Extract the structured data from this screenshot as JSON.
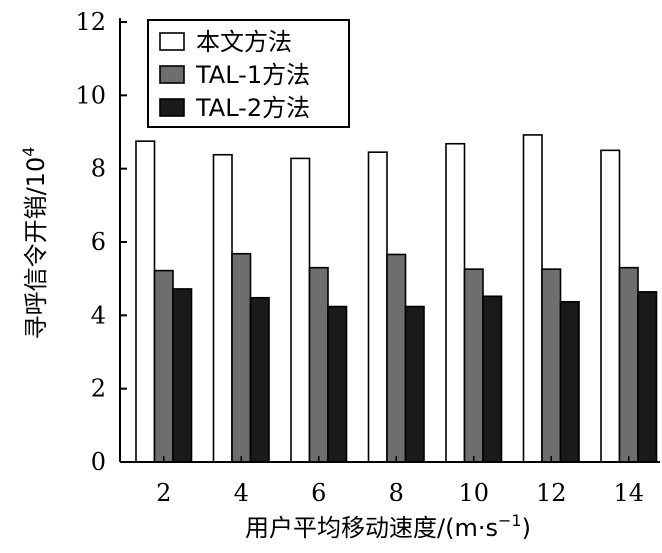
{
  "chart_data": {
    "type": "bar",
    "ylabel": "寻呼信令开销/10",
    "ylabel_exponent": "4",
    "xlabel": "用户平均移动速度/(m·s",
    "xlabel_exponent": "−1",
    "xlabel_suffix": ")",
    "ylim": [
      0,
      12
    ],
    "yticks": [
      "0",
      "2",
      "4",
      "6",
      "8",
      "10",
      "12"
    ],
    "categories": [
      "2",
      "4",
      "6",
      "8",
      "10",
      "12",
      "14"
    ],
    "series": [
      {
        "name": "本文方法",
        "color": "#ffffff",
        "values": [
          8.75,
          8.38,
          8.28,
          8.45,
          8.68,
          8.92,
          8.5
        ]
      },
      {
        "name": "TAL-1方法",
        "color": "#6e6e6e",
        "values": [
          5.22,
          5.68,
          5.3,
          5.66,
          5.26,
          5.26,
          5.3
        ]
      },
      {
        "name": "TAL-2方法",
        "color": "#1a1a1a",
        "values": [
          4.72,
          4.48,
          4.24,
          4.24,
          4.52,
          4.37,
          4.64
        ]
      }
    ],
    "legend_position": "top-left",
    "grid": false
  }
}
